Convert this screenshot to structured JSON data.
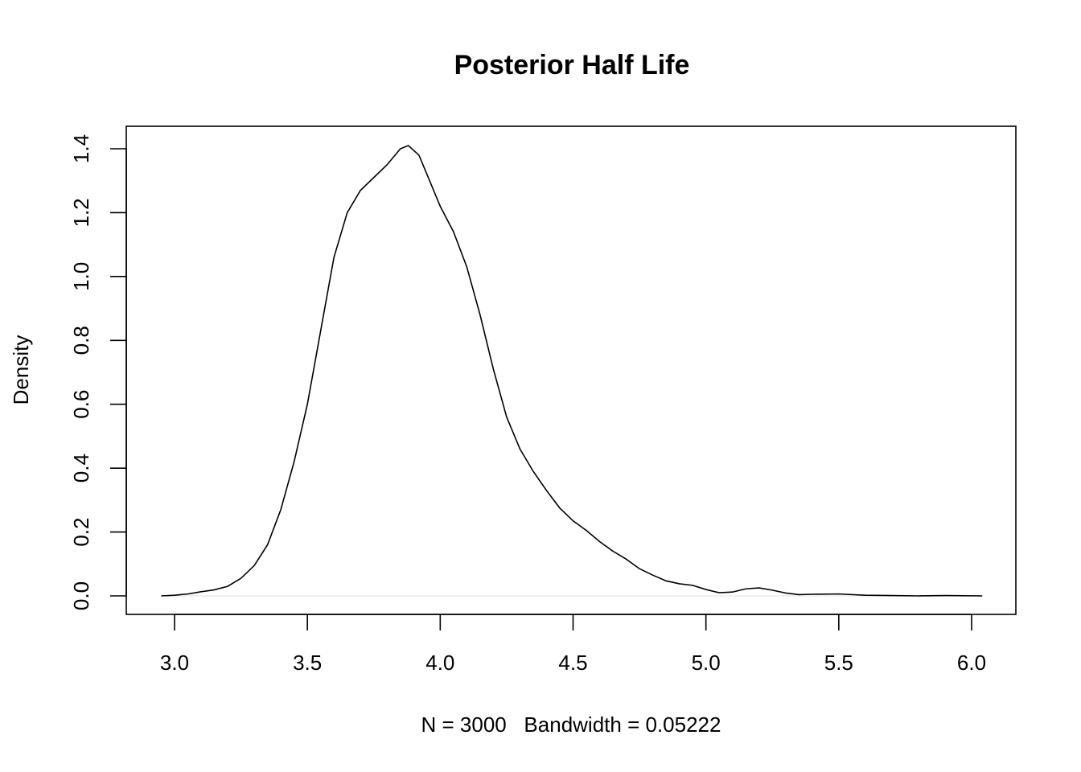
{
  "chart_data": {
    "type": "line",
    "title": "Posterior Half Life",
    "xlabel": "N = 3000   Bandwidth = 0.05222",
    "ylabel": "Density",
    "xlim": [
      2.95,
      6.04
    ],
    "ylim": [
      0.0,
      1.4
    ],
    "x_ticks": [
      3.0,
      3.5,
      4.0,
      4.5,
      5.0,
      5.5,
      6.0
    ],
    "x_tick_labels": [
      "3.0",
      "3.5",
      "4.0",
      "4.5",
      "5.0",
      "5.5",
      "6.0"
    ],
    "y_ticks": [
      0.0,
      0.2,
      0.4,
      0.6,
      0.8,
      1.0,
      1.2,
      1.4
    ],
    "y_tick_labels": [
      "0.0",
      "0.2",
      "0.4",
      "0.6",
      "0.8",
      "1.0",
      "1.2",
      "1.4"
    ],
    "grid": false,
    "zero_line": true,
    "series": [
      {
        "values": [
          [
            2.95,
            0.0
          ],
          [
            3.0,
            0.002
          ],
          [
            3.05,
            0.006
          ],
          [
            3.1,
            0.013
          ],
          [
            3.15,
            0.019
          ],
          [
            3.2,
            0.03
          ],
          [
            3.25,
            0.055
          ],
          [
            3.3,
            0.095
          ],
          [
            3.35,
            0.16
          ],
          [
            3.4,
            0.27
          ],
          [
            3.45,
            0.42
          ],
          [
            3.5,
            0.6
          ],
          [
            3.55,
            0.83
          ],
          [
            3.6,
            1.06
          ],
          [
            3.65,
            1.2
          ],
          [
            3.7,
            1.27
          ],
          [
            3.75,
            1.31
          ],
          [
            3.8,
            1.35
          ],
          [
            3.85,
            1.4
          ],
          [
            3.88,
            1.41
          ],
          [
            3.92,
            1.38
          ],
          [
            3.96,
            1.3
          ],
          [
            4.0,
            1.22
          ],
          [
            4.05,
            1.14
          ],
          [
            4.1,
            1.03
          ],
          [
            4.15,
            0.88
          ],
          [
            4.2,
            0.71
          ],
          [
            4.25,
            0.56
          ],
          [
            4.3,
            0.46
          ],
          [
            4.35,
            0.39
          ],
          [
            4.4,
            0.33
          ],
          [
            4.45,
            0.275
          ],
          [
            4.5,
            0.235
          ],
          [
            4.55,
            0.205
          ],
          [
            4.6,
            0.17
          ],
          [
            4.65,
            0.14
          ],
          [
            4.7,
            0.115
          ],
          [
            4.75,
            0.085
          ],
          [
            4.8,
            0.065
          ],
          [
            4.85,
            0.047
          ],
          [
            4.9,
            0.038
          ],
          [
            4.95,
            0.033
          ],
          [
            5.0,
            0.02
          ],
          [
            5.05,
            0.01
          ],
          [
            5.1,
            0.012
          ],
          [
            5.15,
            0.022
          ],
          [
            5.2,
            0.025
          ],
          [
            5.25,
            0.018
          ],
          [
            5.3,
            0.009
          ],
          [
            5.35,
            0.004
          ],
          [
            5.4,
            0.005
          ],
          [
            5.5,
            0.006
          ],
          [
            5.6,
            0.002
          ],
          [
            5.7,
            0.001
          ],
          [
            5.8,
            0.0
          ],
          [
            5.9,
            0.001
          ],
          [
            6.04,
            0.0
          ]
        ]
      }
    ]
  }
}
